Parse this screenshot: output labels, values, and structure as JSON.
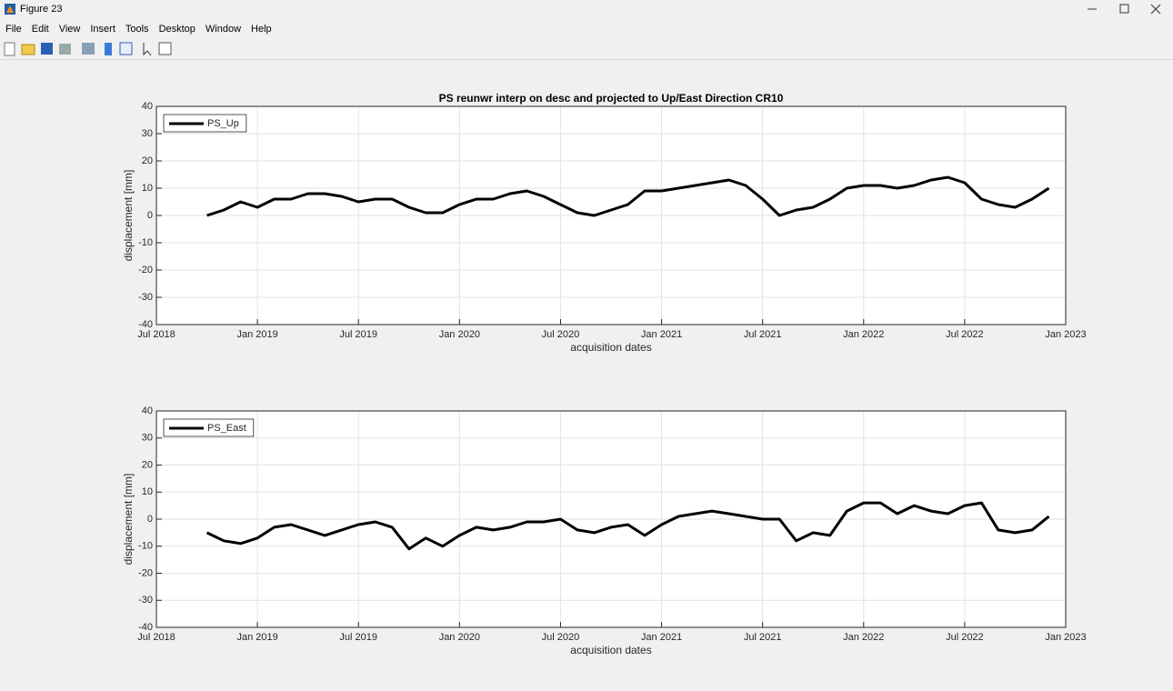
{
  "window_title": "Figure 23",
  "menu": [
    "File",
    "Edit",
    "View",
    "Insert",
    "Tools",
    "Desktop",
    "Window",
    "Help"
  ],
  "chart_data": [
    {
      "type": "line",
      "title": "PS reunwr interp on desc and projected to Up/East Direction CR10",
      "xlabel": "acquisition dates",
      "ylabel": "displacement [mm]",
      "x": [
        "2018-10",
        "2018-11",
        "2018-12",
        "2019-01",
        "2019-02",
        "2019-03",
        "2019-04",
        "2019-05",
        "2019-06",
        "2019-07",
        "2019-08",
        "2019-09",
        "2019-10",
        "2019-11",
        "2019-12",
        "2020-01",
        "2020-02",
        "2020-03",
        "2020-04",
        "2020-05",
        "2020-06",
        "2020-07",
        "2020-08",
        "2020-09",
        "2020-10",
        "2020-11",
        "2020-12",
        "2021-01",
        "2021-02",
        "2021-03",
        "2021-04",
        "2021-05",
        "2021-06",
        "2021-07",
        "2021-08",
        "2021-09",
        "2021-10",
        "2021-11",
        "2021-12",
        "2022-01",
        "2022-02",
        "2022-03",
        "2022-04",
        "2022-05",
        "2022-06",
        "2022-07",
        "2022-08",
        "2022-09",
        "2022-10",
        "2022-11",
        "2022-12"
      ],
      "series": [
        {
          "name": "PS_Up",
          "color": "#000000",
          "values": [
            0,
            2,
            5,
            3,
            6,
            6,
            8,
            8,
            7,
            5,
            6,
            6,
            3,
            1,
            1,
            4,
            6,
            6,
            8,
            9,
            7,
            4,
            1,
            0,
            2,
            4,
            9,
            9,
            10,
            11,
            12,
            13,
            11,
            6,
            0,
            2,
            3,
            6,
            10,
            11,
            11,
            10,
            11,
            13,
            14,
            12,
            6,
            4,
            3,
            6,
            10
          ]
        }
      ],
      "xlim": [
        "2018-07",
        "2023-01"
      ],
      "xticks": [
        {
          "value": "2018-07",
          "label": "Jul 2018"
        },
        {
          "value": "2019-01",
          "label": "Jan 2019"
        },
        {
          "value": "2019-07",
          "label": "Jul 2019"
        },
        {
          "value": "2020-01",
          "label": "Jan 2020"
        },
        {
          "value": "2020-07",
          "label": "Jul 2020"
        },
        {
          "value": "2021-01",
          "label": "Jan 2021"
        },
        {
          "value": "2021-07",
          "label": "Jul 2021"
        },
        {
          "value": "2022-01",
          "label": "Jan 2022"
        },
        {
          "value": "2022-07",
          "label": "Jul 2022"
        },
        {
          "value": "2023-01",
          "label": "Jan 2023"
        }
      ],
      "ylim": [
        -40,
        40
      ],
      "yticks": [
        -40,
        -30,
        -20,
        -10,
        0,
        10,
        20,
        30,
        40
      ],
      "grid": true,
      "legend": "northwest"
    },
    {
      "type": "line",
      "xlabel": "acquisition dates",
      "ylabel": "displacement [mm]",
      "x": [
        "2018-10",
        "2018-11",
        "2018-12",
        "2019-01",
        "2019-02",
        "2019-03",
        "2019-04",
        "2019-05",
        "2019-06",
        "2019-07",
        "2019-08",
        "2019-09",
        "2019-10",
        "2019-11",
        "2019-12",
        "2020-01",
        "2020-02",
        "2020-03",
        "2020-04",
        "2020-05",
        "2020-06",
        "2020-07",
        "2020-08",
        "2020-09",
        "2020-10",
        "2020-11",
        "2020-12",
        "2021-01",
        "2021-02",
        "2021-03",
        "2021-04",
        "2021-05",
        "2021-06",
        "2021-07",
        "2021-08",
        "2021-09",
        "2021-10",
        "2021-11",
        "2021-12",
        "2022-01",
        "2022-02",
        "2022-03",
        "2022-04",
        "2022-05",
        "2022-06",
        "2022-07",
        "2022-08",
        "2022-09",
        "2022-10",
        "2022-11",
        "2022-12"
      ],
      "series": [
        {
          "name": "PS_East",
          "color": "#000000",
          "values": [
            -5,
            -8,
            -9,
            -7,
            -3,
            -2,
            -4,
            -6,
            -4,
            -2,
            -1,
            -3,
            -11,
            -7,
            -10,
            -6,
            -3,
            -4,
            -3,
            -1,
            -1,
            0,
            -4,
            -5,
            -3,
            -2,
            -6,
            -2,
            1,
            2,
            3,
            2,
            1,
            0,
            0,
            -8,
            -5,
            -6,
            3,
            6,
            6,
            2,
            5,
            3,
            2,
            5,
            6,
            -4,
            -5,
            -4,
            1
          ]
        }
      ],
      "xlim": [
        "2018-07",
        "2023-01"
      ],
      "xticks": [
        {
          "value": "2018-07",
          "label": "Jul 2018"
        },
        {
          "value": "2019-01",
          "label": "Jan 2019"
        },
        {
          "value": "2019-07",
          "label": "Jul 2019"
        },
        {
          "value": "2020-01",
          "label": "Jan 2020"
        },
        {
          "value": "2020-07",
          "label": "Jul 2020"
        },
        {
          "value": "2021-01",
          "label": "Jan 2021"
        },
        {
          "value": "2021-07",
          "label": "Jul 2021"
        },
        {
          "value": "2022-01",
          "label": "Jan 2022"
        },
        {
          "value": "2022-07",
          "label": "Jul 2022"
        },
        {
          "value": "2023-01",
          "label": "Jan 2023"
        }
      ],
      "ylim": [
        -40,
        40
      ],
      "yticks": [
        -40,
        -30,
        -20,
        -10,
        0,
        10,
        20,
        30,
        40
      ],
      "grid": true,
      "legend": "northwest"
    }
  ]
}
